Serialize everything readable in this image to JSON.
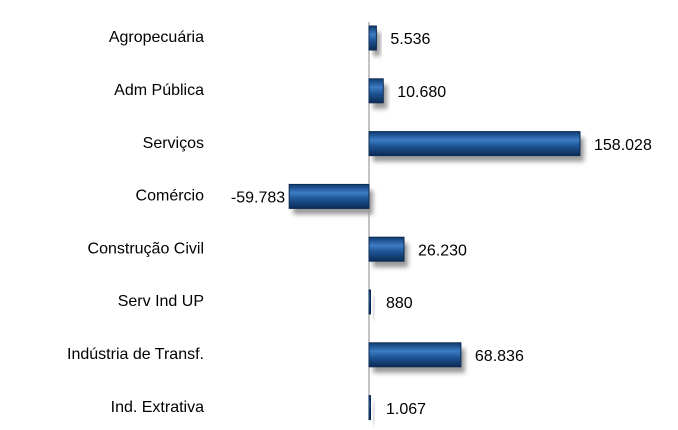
{
  "chart_data": {
    "type": "bar",
    "orientation": "horizontal",
    "categories": [
      "Agropecuária",
      "Adm Pública",
      "Serviços",
      "Comércio",
      "Construção Civil",
      "Serv Ind UP",
      "Indústria de Transf.",
      "Ind. Extrativa"
    ],
    "values": [
      5536,
      10680,
      158028,
      -59783,
      26230,
      880,
      68836,
      1067
    ],
    "value_labels": [
      "5.536",
      "10.680",
      "158.028",
      "-59.783",
      "26.230",
      "880",
      "68.836",
      "1.067"
    ],
    "color": "#1f5596"
  }
}
